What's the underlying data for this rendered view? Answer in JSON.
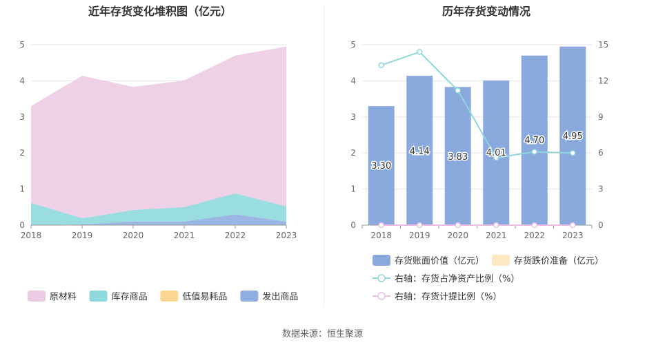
{
  "source": "数据来源：恒生聚源",
  "chart_data": [
    {
      "type": "area",
      "stacked": true,
      "title": "近年存货变化堆积图（亿元）",
      "categories": [
        "2018",
        "2019",
        "2020",
        "2021",
        "2022",
        "2023"
      ],
      "ylim": [
        0,
        5
      ],
      "yticks": [
        "0",
        "1",
        "2",
        "3",
        "4",
        "5"
      ],
      "grid": true,
      "legend_position": "bottom",
      "series": [
        {
          "name": "发出商品",
          "color": "#90aee0",
          "values": [
            0.0,
            0.02,
            0.1,
            0.1,
            0.3,
            0.1
          ]
        },
        {
          "name": "低值易耗品",
          "color": "#fdd796",
          "values": [
            0.0,
            0.0,
            0.0,
            0.0,
            0.0,
            0.0
          ]
        },
        {
          "name": "库存商品",
          "color": "#8fd9dd",
          "values": [
            0.62,
            0.17,
            0.32,
            0.4,
            0.58,
            0.42
          ]
        },
        {
          "name": "原材料",
          "color": "#eccbe4",
          "values": [
            2.68,
            3.95,
            3.41,
            3.51,
            3.82,
            4.43
          ]
        }
      ],
      "legend_order": [
        "原材料",
        "库存商品",
        "低值易耗品",
        "发出商品"
      ]
    },
    {
      "type": "bar+line",
      "title": "历年存货变动情况",
      "categories": [
        "2018",
        "2019",
        "2020",
        "2021",
        "2022",
        "2023"
      ],
      "ylim_left": [
        0,
        5
      ],
      "yticks_left": [
        "0",
        "1",
        "2",
        "3",
        "4",
        "5"
      ],
      "ylim_right": [
        0,
        15
      ],
      "yticks_right": [
        "0",
        "3",
        "6",
        "9",
        "12",
        "15"
      ],
      "grid": true,
      "legend_position": "bottom",
      "series": [
        {
          "name": "存货账面价值（亿元）",
          "kind": "bar",
          "axis": "left",
          "color": "#8aaade",
          "values": [
            3.3,
            4.14,
            3.83,
            4.01,
            4.7,
            4.95
          ],
          "labels": [
            "3.30",
            "4.14",
            "3.83",
            "4.01",
            "4.70",
            "4.95"
          ]
        },
        {
          "name": "存货跌价准备（亿元）",
          "kind": "bar",
          "axis": "left",
          "color": "#fde9c4",
          "values": [
            0,
            0,
            0,
            0,
            0,
            0
          ]
        },
        {
          "name": "右轴：存货占净资产比例（%）",
          "kind": "line",
          "axis": "right",
          "color": "#8ed8dc",
          "values": [
            13.3,
            14.4,
            11.2,
            5.6,
            6.1,
            6.0
          ]
        },
        {
          "name": "右轴：存货计提比例（%）",
          "kind": "line",
          "axis": "right",
          "color": "#ebbfe3",
          "values": [
            0,
            0,
            0,
            0,
            0,
            0
          ]
        }
      ]
    }
  ]
}
